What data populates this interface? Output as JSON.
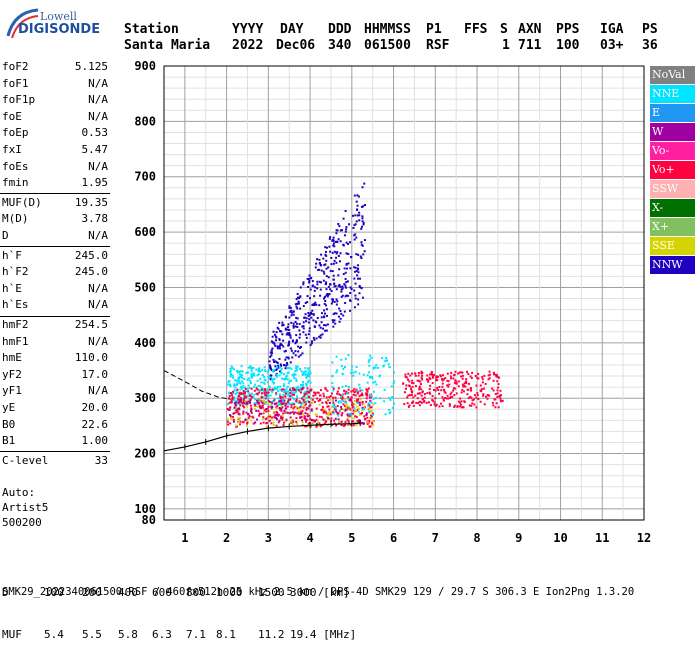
{
  "logo": {
    "word1": "Lowell",
    "word2": "DIGISONDE"
  },
  "header": {
    "line1": [
      "Station",
      "YYYY",
      "DAY",
      "DDD",
      "HHMMSS",
      "P1",
      "FFS",
      "S",
      "AXN",
      "PPS",
      "IGA",
      "PS"
    ],
    "line2": [
      "Santa Maria",
      "2022",
      "Dec06",
      "340",
      "061500",
      "RSF",
      "1",
      "711",
      "100",
      "03+",
      "36"
    ]
  },
  "params": [
    {
      "label": "foF2",
      "value": "5.125"
    },
    {
      "label": "foF1",
      "value": "N/A"
    },
    {
      "label": "foF1p",
      "value": "N/A"
    },
    {
      "label": "foE",
      "value": "N/A"
    },
    {
      "label": "foEp",
      "value": "0.53"
    },
    {
      "label": "fxI",
      "value": "5.47"
    },
    {
      "label": "foEs",
      "value": "N/A"
    },
    {
      "label": "fmin",
      "value": "1.95"
    },
    {
      "label": "MUF(D)",
      "value": "19.35"
    },
    {
      "label": "M(D)",
      "value": "3.78"
    },
    {
      "label": "D",
      "value": "N/A"
    },
    {
      "label": "h`F",
      "value": "245.0"
    },
    {
      "label": "h`F2",
      "value": "245.0"
    },
    {
      "label": "h`E",
      "value": "N/A"
    },
    {
      "label": "h`Es",
      "value": "N/A"
    },
    {
      "label": "hmF2",
      "value": "254.5"
    },
    {
      "label": "hmF1",
      "value": "N/A"
    },
    {
      "label": "hmE",
      "value": "110.0"
    },
    {
      "label": "yF2",
      "value": "17.0"
    },
    {
      "label": "yF1",
      "value": "N/A"
    },
    {
      "label": "yE",
      "value": "20.0"
    },
    {
      "label": "B0",
      "value": "22.6"
    },
    {
      "label": "B1",
      "value": "1.00"
    },
    {
      "label": "C-level",
      "value": "33"
    }
  ],
  "auto": [
    "Auto:",
    "Artist5",
    "500200"
  ],
  "legend": [
    {
      "label": "NoVal",
      "color": "#808080"
    },
    {
      "label": "NNE",
      "color": "#00e5ff"
    },
    {
      "label": "E",
      "color": "#2196f3"
    },
    {
      "label": "W",
      "color": "#a000a0"
    },
    {
      "label": "Vo-",
      "color": "#ff1fa0"
    },
    {
      "label": "Vo+",
      "color": "#ff0040"
    },
    {
      "label": "SSW",
      "color": "#ffb0b0"
    },
    {
      "label": "X-",
      "color": "#007000"
    },
    {
      "label": "X+",
      "color": "#80c060"
    },
    {
      "label": "SSE",
      "color": "#d4d400"
    },
    {
      "label": "NNW",
      "color": "#2000c0"
    }
  ],
  "footer": {
    "d_row": [
      "D",
      "100",
      "200",
      "400",
      "600",
      "800",
      "1000",
      "1500",
      "3000 [km]"
    ],
    "muf_row": [
      "MUF",
      "5.4",
      "5.5",
      "5.8",
      "6.3",
      "7.1",
      "8.1",
      "11.2",
      "19.4 [MHz]"
    ],
    "bottom": "SMK29_2022340061500.RSF / 460fx512h 25 kHz 2.5 km / DPS-4D SMK29 129 / 29.7 S 306.3 E Ion2Png 1.3.20"
  },
  "chart_data": {
    "type": "scatter",
    "title": "",
    "xlabel": "",
    "ylabel": "",
    "xlim": [
      0.5,
      12
    ],
    "ylim": [
      80,
      900
    ],
    "x_ticks": [
      1,
      2,
      3,
      4,
      5,
      6,
      7,
      8,
      9,
      10,
      11,
      12
    ],
    "y_ticks": [
      100,
      200,
      300,
      400,
      500,
      600,
      700,
      800,
      900
    ],
    "grid": true,
    "legend_position": "right",
    "clusters": [
      {
        "name": "NNW",
        "x_range": [
          3.0,
          5.3
        ],
        "y_range": [
          330,
          700
        ],
        "count": 500,
        "slope": true
      },
      {
        "name": "NNE",
        "x_range": [
          2.0,
          4.0
        ],
        "y_range": [
          290,
          360
        ],
        "count": 400,
        "slope": false
      },
      {
        "name": "Vo+",
        "x_range": [
          2.0,
          5.5
        ],
        "y_range": [
          250,
          320
        ],
        "count": 500,
        "slope": false
      },
      {
        "name": "Vo+",
        "x_range": [
          6.2,
          8.6
        ],
        "y_range": [
          285,
          350
        ],
        "count": 300,
        "slope": false
      },
      {
        "name": "SSE",
        "x_range": [
          2.0,
          5.5
        ],
        "y_range": [
          250,
          300
        ],
        "count": 120,
        "slope": false
      },
      {
        "name": "W",
        "x_range": [
          2.0,
          5.5
        ],
        "y_range": [
          255,
          300
        ],
        "count": 100,
        "slope": false
      },
      {
        "name": "NNE",
        "x_range": [
          4.5,
          6.0
        ],
        "y_range": [
          270,
          380
        ],
        "count": 120,
        "slope": false
      }
    ],
    "trace_x": [
      0.5,
      1.0,
      1.5,
      2.0,
      2.5,
      3.0,
      3.5,
      4.0,
      4.5,
      5.0,
      5.2
    ],
    "trace_y": [
      205,
      212,
      221,
      232,
      240,
      246,
      249,
      251,
      253,
      254,
      255
    ],
    "dashed_x": [
      0.5,
      1.0,
      1.4,
      1.8,
      2.1
    ],
    "dashed_y": [
      350,
      330,
      313,
      302,
      298
    ]
  }
}
